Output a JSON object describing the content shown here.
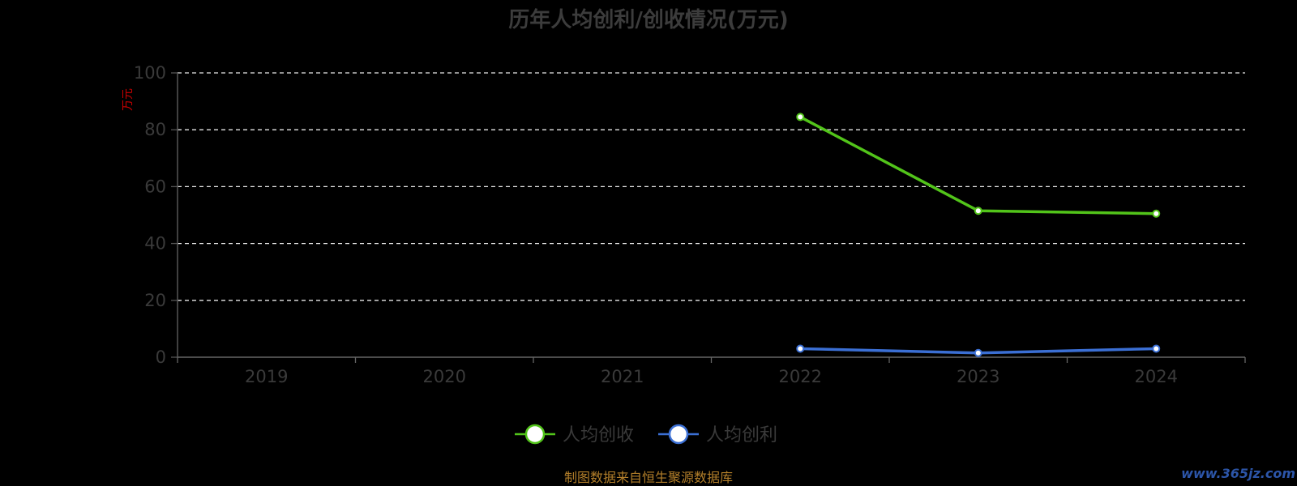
{
  "chart_data": {
    "type": "line",
    "title": "历年人均创利/创收情况(万元)",
    "ylabel": "万元",
    "categories": [
      "2019",
      "2020",
      "2021",
      "2022",
      "2023",
      "2024"
    ],
    "ylim": [
      0,
      100
    ],
    "yticks": [
      "0",
      "20",
      "40",
      "60",
      "80",
      "100"
    ],
    "grid": true,
    "legend_position": "bottom",
    "series": [
      {
        "name": "人均创收",
        "color": "#52c41a",
        "values": [
          null,
          null,
          null,
          84.5,
          51.5,
          50.5
        ]
      },
      {
        "name": "人均创利",
        "color": "#3b6fd4",
        "values": [
          null,
          null,
          null,
          3.0,
          1.5,
          3.0
        ]
      }
    ]
  },
  "footer": {
    "source": "制图数据来自恒生聚源数据库",
    "watermark": "www.365jz.com"
  }
}
